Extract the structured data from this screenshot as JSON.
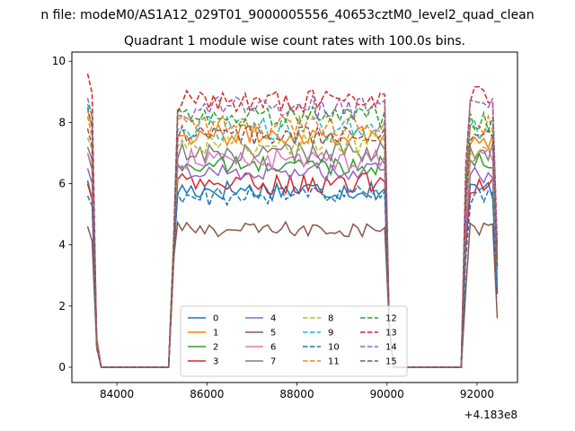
{
  "figure": {
    "suptitle": "n file: modeM0/AS1A12_029T01_9000005556_40653cztM0_level2_quad_clean",
    "title": "Quadrant 1 module wise count rates with 100.0s bins.",
    "x_offset_label": "+4.183e8"
  },
  "chart_data": {
    "type": "line",
    "title": "Quadrant 1 module wise count rates with 100.0s bins.",
    "xlabel": "",
    "ylabel": "",
    "x_offset": 418300000,
    "xlim": [
      83000,
      92900
    ],
    "ylim": [
      -0.5,
      10.3
    ],
    "x_ticks": [
      84000,
      86000,
      88000,
      90000,
      92000
    ],
    "x_tick_labels": [
      "84000",
      "86000",
      "88000",
      "90000",
      "92000"
    ],
    "y_ticks": [
      0,
      2,
      4,
      6,
      8,
      10
    ],
    "y_tick_labels": [
      "0",
      "2",
      "4",
      "6",
      "8",
      "10"
    ],
    "grid": false,
    "legend_placement": "lower-center",
    "legend_columns": 4,
    "segments": [
      {
        "x_start": 83350,
        "x_end": 83550,
        "x_step": 100
      },
      {
        "x_start": 83650,
        "x_end": 85150,
        "x_step": 100,
        "flat_zero": true
      },
      {
        "x_start": 85250,
        "x_end": 90050,
        "x_step": 100
      },
      {
        "x_start": 90150,
        "x_end": 91650,
        "x_step": 100,
        "flat_zero": true
      },
      {
        "x_start": 91750,
        "x_end": 92450,
        "x_step": 100
      }
    ],
    "series": [
      {
        "name": "0",
        "color": "#1f77b4",
        "dash": "solid",
        "level": 5.8,
        "spread": 0.35,
        "start_level": 6.1,
        "end_level": 5.8,
        "end_value": 2.5
      },
      {
        "name": "1",
        "color": "#ff7f0e",
        "dash": "solid",
        "level": 7.6,
        "spread": 0.35,
        "start_level": 8.4,
        "end_level": 7.5,
        "end_value": 3.2
      },
      {
        "name": "2",
        "color": "#2ca02c",
        "dash": "solid",
        "level": 6.6,
        "spread": 0.3,
        "start_level": 7.0,
        "end_level": 6.7,
        "end_value": 2.8
      },
      {
        "name": "3",
        "color": "#d62728",
        "dash": "solid",
        "level": 6.0,
        "spread": 0.35,
        "start_level": 6.0,
        "end_level": 6.0,
        "end_value": 2.4
      },
      {
        "name": "4",
        "color": "#9467bd",
        "dash": "solid",
        "level": 6.4,
        "spread": 0.3,
        "start_level": 6.5,
        "end_level": 6.3,
        "end_value": 2.6
      },
      {
        "name": "5",
        "color": "#8c564b",
        "dash": "solid",
        "level": 4.5,
        "spread": 0.25,
        "start_level": 4.6,
        "end_level": 4.5,
        "end_value": 1.6
      },
      {
        "name": "6",
        "color": "#e377c2",
        "dash": "solid",
        "level": 6.8,
        "spread": 0.35,
        "start_level": 7.0,
        "end_level": 6.8,
        "end_value": 2.9
      },
      {
        "name": "7",
        "color": "#7f7f7f",
        "dash": "solid",
        "level": 7.0,
        "spread": 0.35,
        "start_level": 7.2,
        "end_level": 7.0,
        "end_value": 3.0
      },
      {
        "name": "8",
        "color": "#bcbd22",
        "dash": "dashed",
        "level": 7.3,
        "spread": 0.35,
        "start_level": 7.5,
        "end_level": 7.2,
        "end_value": 3.1
      },
      {
        "name": "9",
        "color": "#17becf",
        "dash": "dashed",
        "level": 7.8,
        "spread": 0.4,
        "start_level": 8.6,
        "end_level": 7.8,
        "end_value": 3.3
      },
      {
        "name": "10",
        "color": "#1f77b4",
        "dash": "dashed",
        "level": 5.6,
        "spread": 0.35,
        "start_level": 5.6,
        "end_level": 5.6,
        "end_value": 2.3
      },
      {
        "name": "11",
        "color": "#ff7f0e",
        "dash": "dashed",
        "level": 7.9,
        "spread": 0.35,
        "start_level": 8.2,
        "end_level": 7.9,
        "end_value": 3.4
      },
      {
        "name": "12",
        "color": "#2ca02c",
        "dash": "dashed",
        "level": 8.2,
        "spread": 0.35,
        "start_level": 8.5,
        "end_level": 8.0,
        "end_value": 3.5
      },
      {
        "name": "13",
        "color": "#d62728",
        "dash": "dashed",
        "level": 8.7,
        "spread": 0.4,
        "start_level": 9.6,
        "end_level": 8.8,
        "end_value": 4.0
      },
      {
        "name": "14",
        "color": "#9467bd",
        "dash": "dashed",
        "level": 8.5,
        "spread": 0.4,
        "start_level": 8.8,
        "end_level": 8.5,
        "end_value": 3.7
      },
      {
        "name": "15",
        "color": "#8c564b",
        "dash": "dashed",
        "level": 7.6,
        "spread": 0.35,
        "start_level": 7.8,
        "end_level": 7.6,
        "end_value": 3.2
      }
    ]
  }
}
